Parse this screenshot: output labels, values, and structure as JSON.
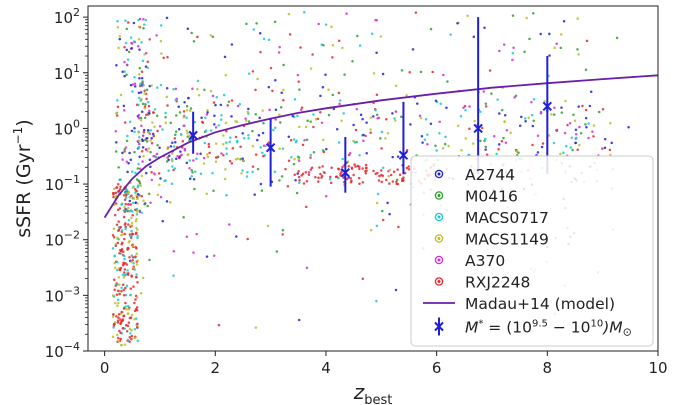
{
  "chart_data": {
    "type": "scatter",
    "xlabel": {
      "main": "z",
      "sub": "best"
    },
    "ylabel": {
      "main": "sSFR (Gyr",
      "sup": "−1",
      "close": ")"
    },
    "xlim": [
      -0.3,
      10
    ],
    "ylim_log10": [
      -4,
      2.2
    ],
    "y_scale": "log",
    "grid": false,
    "legend_position": "lower-right",
    "xticks": [
      {
        "value": 0,
        "label": "0"
      },
      {
        "value": 2,
        "label": "2"
      },
      {
        "value": 4,
        "label": "4"
      },
      {
        "value": 6,
        "label": "6"
      },
      {
        "value": 8,
        "label": "8"
      },
      {
        "value": 10,
        "label": "10"
      }
    ],
    "yticks": [
      {
        "log": -4,
        "base": "10",
        "exp": "−4"
      },
      {
        "log": -3,
        "base": "10",
        "exp": "−3"
      },
      {
        "log": -2,
        "base": "10",
        "exp": "−2"
      },
      {
        "log": -1,
        "base": "10",
        "exp": "−1"
      },
      {
        "log": 0,
        "base": "10",
        "exp": "0"
      },
      {
        "log": 1,
        "base": "10",
        "exp": "1"
      },
      {
        "log": 2,
        "base": "10",
        "exp": "2"
      }
    ],
    "series": [
      {
        "name": "A2744",
        "color": "#1f1fd6"
      },
      {
        "name": "M0416",
        "color": "#2ca02c"
      },
      {
        "name": "MACS0717",
        "color": "#17c9cf"
      },
      {
        "name": "MACS1149",
        "color": "#bcbd22"
      },
      {
        "name": "A370",
        "color": "#d62dd6"
      },
      {
        "name": "RXJ2248",
        "color": "#e8262a"
      }
    ],
    "model": {
      "name": "Madau+14 (model)",
      "color": "#6a1fa8",
      "x": [
        0,
        0.25,
        0.5,
        0.75,
        1,
        1.5,
        2,
        2.5,
        3,
        3.5,
        4,
        5,
        6,
        7,
        8,
        9,
        10
      ],
      "y": [
        0.025,
        0.062,
        0.125,
        0.21,
        0.3,
        0.55,
        0.85,
        1.15,
        1.5,
        1.9,
        2.3,
        3.2,
        4.2,
        5.4,
        6.5,
        7.7,
        9.0
      ]
    },
    "binned": {
      "name": "M* = (10^9.5 − 10^10) M⊙",
      "legend_parts": [
        "M",
        "*",
        " = (10",
        "9.5",
        " − 10",
        "10",
        ")M",
        "⊙"
      ],
      "color": "#1f1fd6",
      "points": [
        {
          "x": 1.6,
          "y": 0.75,
          "ylo": 0.35,
          "yhi": 2.0
        },
        {
          "x": 3.0,
          "y": 0.45,
          "ylo": 0.09,
          "yhi": 1.5
        },
        {
          "x": 4.35,
          "y": 0.16,
          "ylo": 0.07,
          "yhi": 0.7
        },
        {
          "x": 5.4,
          "y": 0.33,
          "ylo": 0.15,
          "yhi": 3.0
        },
        {
          "x": 6.75,
          "y": 1.0,
          "ylo": 0.15,
          "yhi": 100
        },
        {
          "x": 8.0,
          "y": 2.5,
          "ylo": 0.15,
          "yhi": 20
        }
      ]
    },
    "scatter_points_count": 1400
  }
}
